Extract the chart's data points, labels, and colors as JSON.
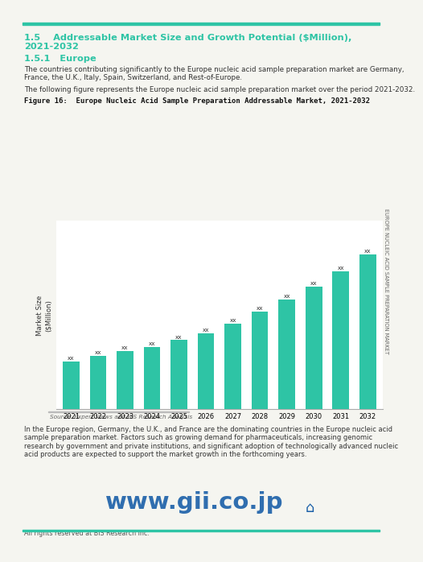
{
  "title_line1": "1.5    Addressable Market Size and Growth Potential ($Million),",
  "title_line2": "        2021-2032",
  "subtitle_section": "1.5.1   Europe",
  "para1_line1": "The countries contributing significantly to the Europe nucleic acid sample preparation market are Germany,",
  "para1_line2": "France, the U.K., Italy, Spain, Switzerland, and Rest-of-Europe.",
  "para2": "The following figure represents the Europe nucleic acid sample preparation market over the period 2021-2032.",
  "figure_title": "Figure 16:  Europe Nucleic Acid Sample Preparation Addressable Market, 2021-2032",
  "years": [
    2021,
    2022,
    2023,
    2024,
    2025,
    2026,
    2027,
    2028,
    2029,
    2030,
    2031,
    2032
  ],
  "values": [
    1.0,
    1.12,
    1.22,
    1.3,
    1.45,
    1.6,
    1.8,
    2.05,
    2.3,
    2.58,
    2.9,
    3.25
  ],
  "bar_color": "#2ec4a5",
  "bar_label": "xx",
  "ylabel": "Market Size\n($Million)",
  "source_text": "Source: Expert Views and BIS Research Analysis",
  "footer_line1": "In the Europe region, Germany, the U.K., and France are the dominating countries in the Europe nucleic acid",
  "footer_line2": "sample preparation market. Factors such as growing demand for pharmaceuticals, increasing genomic",
  "footer_line3": "research by government and private institutions, and significant adoption of technologically advanced nucleic",
  "footer_line4": "acid products are expected to support the market growth in the forthcoming years.",
  "watermark": "www.gii.co.jp",
  "copyright": "All rights reserved at BIS Research Inc.",
  "side_text": "EUROPE NUCLEIC ACID SAMPLE PREPARATION MARKET",
  "teal_color": "#2ec4a5",
  "heading_color": "#2ec4a5",
  "page_background": "#f5f5f0",
  "text_dark": "#222222",
  "text_gray": "#555555",
  "watermark_color": "#1a5fa8"
}
